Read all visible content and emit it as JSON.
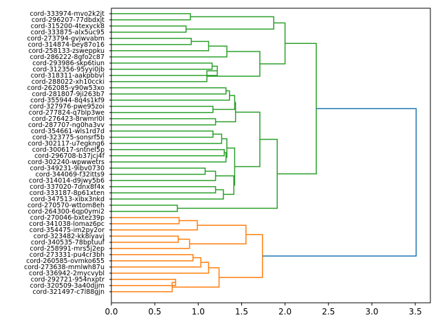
{
  "chart_data": {
    "type": "dendrogram",
    "orientation": "left",
    "title": "",
    "xlabel": "",
    "ylabel": "",
    "xlim": [
      0,
      3.72
    ],
    "xticks": [
      0.0,
      0.5,
      1.0,
      1.5,
      2.0,
      2.5,
      3.0,
      3.5
    ],
    "xtick_labels": [
      "0.0",
      "0.5",
      "1.0",
      "1.5",
      "2.0",
      "2.5",
      "3.0",
      "3.5"
    ],
    "leaves": [
      "cord-333974-mvo2k2jt",
      "cord-296207-77dbdxjt",
      "cord-315200-4texyck8",
      "cord-333875-alx5uc95",
      "cord-273794-gvjwvabm",
      "cord-314874-bey87o16",
      "cord-258133-zsweppku",
      "cord-286222-8gfo2c87",
      "cord-293986-skp6tiun",
      "cord-312356-95yyi0jb",
      "cord-318311-aakpbbvl",
      "cord-288022-xh10ccki",
      "cord-262085-y90w53xo",
      "cord-281807-9ji263b7",
      "cord-355944-8q4s1kf9",
      "cord-327976-pwe95zoi",
      "cord-277824-q7blp3we",
      "cord-276423-8rwmrl0l",
      "cord-287707-ng0ha3vv",
      "cord-354661-wls1rd7d",
      "cord-323775-sonsrf5b",
      "cord-302117-u7egkng6",
      "cord-300617-sntnel5p",
      "cord-296708-b37jcj4f",
      "cord-302240-wpwwetrs",
      "cord-349231-9ibv0730",
      "cord-344069-f32itts9",
      "cord-314014-d9jwy5b6",
      "cord-337020-7dnx8f4x",
      "cord-333187-8p61xten",
      "cord-347513-xibx3nkd",
      "cord-270570-wttom8eh",
      "cord-264300-6qp0ymi2",
      "cord-270046-bxtez39p",
      "cord-341038-lomaz6pc",
      "cord-354475-im2py2or",
      "cord-323482-kk8iyavj",
      "cord-340535-78bptuuf",
      "cord-258991-mrs5j2ep",
      "cord-273331-pu4cr3bh",
      "cord-260585-ovmko655",
      "cord-273638-mmlwh87u",
      "cord-336942-2mycvybl",
      "cord-292721-954nxptr",
      "cord-320509-3a40djjm",
      "cord-321497-c7l88gjn"
    ],
    "merges": [
      {
        "a": 0,
        "b": 1,
        "h": 0.91,
        "c": "green"
      },
      {
        "a": 2,
        "b": 3,
        "h": 0.86,
        "c": "green"
      },
      {
        "a": 46,
        "b": 47,
        "h": 1.87,
        "c": "green"
      },
      {
        "a": 4,
        "b": 5,
        "h": 0.92,
        "c": "green"
      },
      {
        "a": 49,
        "b": 6,
        "h": 1.12,
        "c": "green"
      },
      {
        "a": 50,
        "b": 7,
        "h": 1.33,
        "c": "green"
      },
      {
        "a": 8,
        "b": 9,
        "h": 1.16,
        "c": "green"
      },
      {
        "a": 52,
        "b": 10,
        "h": 1.22,
        "c": "green"
      },
      {
        "a": 53,
        "b": 11,
        "h": 1.1,
        "c": "green"
      },
      {
        "a": 51,
        "b": 54,
        "h": 1.71,
        "c": "green"
      },
      {
        "a": 48,
        "b": 55,
        "h": 2.0,
        "c": "green"
      },
      {
        "a": 12,
        "b": 13,
        "h": 1.32,
        "c": "green"
      },
      {
        "a": 57,
        "b": 14,
        "h": 1.36,
        "c": "green"
      },
      {
        "a": 15,
        "b": 16,
        "h": 1.17,
        "c": "green"
      },
      {
        "a": 58,
        "b": 59,
        "h": 1.42,
        "c": "green"
      },
      {
        "a": 17,
        "b": 18,
        "h": 1.2,
        "c": "green"
      },
      {
        "a": 60,
        "b": 61,
        "h": 1.43,
        "c": "green"
      },
      {
        "a": 19,
        "b": 20,
        "h": 1.17,
        "c": "green"
      },
      {
        "a": 63,
        "b": 21,
        "h": 1.27,
        "c": "green"
      },
      {
        "a": 22,
        "b": 23,
        "h": 1.3,
        "c": "green"
      },
      {
        "a": 65,
        "b": 24,
        "h": 1.32,
        "c": "green"
      },
      {
        "a": 64,
        "b": 66,
        "h": 1.33,
        "c": "green"
      },
      {
        "a": 25,
        "b": 26,
        "h": 1.08,
        "c": "green"
      },
      {
        "a": 68,
        "b": 27,
        "h": 1.2,
        "c": "green"
      },
      {
        "a": 28,
        "b": 29,
        "h": 1.2,
        "c": "green"
      },
      {
        "a": 70,
        "b": 30,
        "h": 1.29,
        "c": "green"
      },
      {
        "a": 69,
        "b": 71,
        "h": 1.41,
        "c": "green"
      },
      {
        "a": 67,
        "b": 72,
        "h": 1.42,
        "c": "green"
      },
      {
        "a": 62,
        "b": 73,
        "h": 1.71,
        "c": "green"
      },
      {
        "a": 31,
        "b": 32,
        "h": 0.76,
        "c": "green"
      },
      {
        "a": 74,
        "b": 75,
        "h": 1.91,
        "c": "green"
      },
      {
        "a": 56,
        "b": 76,
        "h": 2.36,
        "c": "green"
      },
      {
        "a": 33,
        "b": 34,
        "h": 0.78,
        "c": "orange"
      },
      {
        "a": 78,
        "b": 35,
        "h": 0.99,
        "c": "orange"
      },
      {
        "a": 36,
        "b": 37,
        "h": 0.77,
        "c": "orange"
      },
      {
        "a": 80,
        "b": 38,
        "h": 0.9,
        "c": "orange"
      },
      {
        "a": 79,
        "b": 81,
        "h": 1.55,
        "c": "orange"
      },
      {
        "a": 39,
        "b": 40,
        "h": 0.94,
        "c": "orange"
      },
      {
        "a": 83,
        "b": 41,
        "h": 1.03,
        "c": "orange"
      },
      {
        "a": 84,
        "b": 42,
        "h": 1.12,
        "c": "orange"
      },
      {
        "a": 43,
        "b": 44,
        "h": 0.74,
        "c": "orange"
      },
      {
        "a": 86,
        "b": 45,
        "h": 0.7,
        "c": "orange"
      },
      {
        "a": 85,
        "b": 87,
        "h": 1.24,
        "c": "orange"
      },
      {
        "a": 82,
        "b": 88,
        "h": 1.74,
        "c": "orange"
      },
      {
        "a": 77,
        "b": 89,
        "h": 3.51,
        "c": "blue"
      }
    ],
    "colors": {
      "green": "#2ca02c",
      "orange": "#ff7f0e",
      "blue": "#1f77b4",
      "axis": "#000000"
    }
  }
}
